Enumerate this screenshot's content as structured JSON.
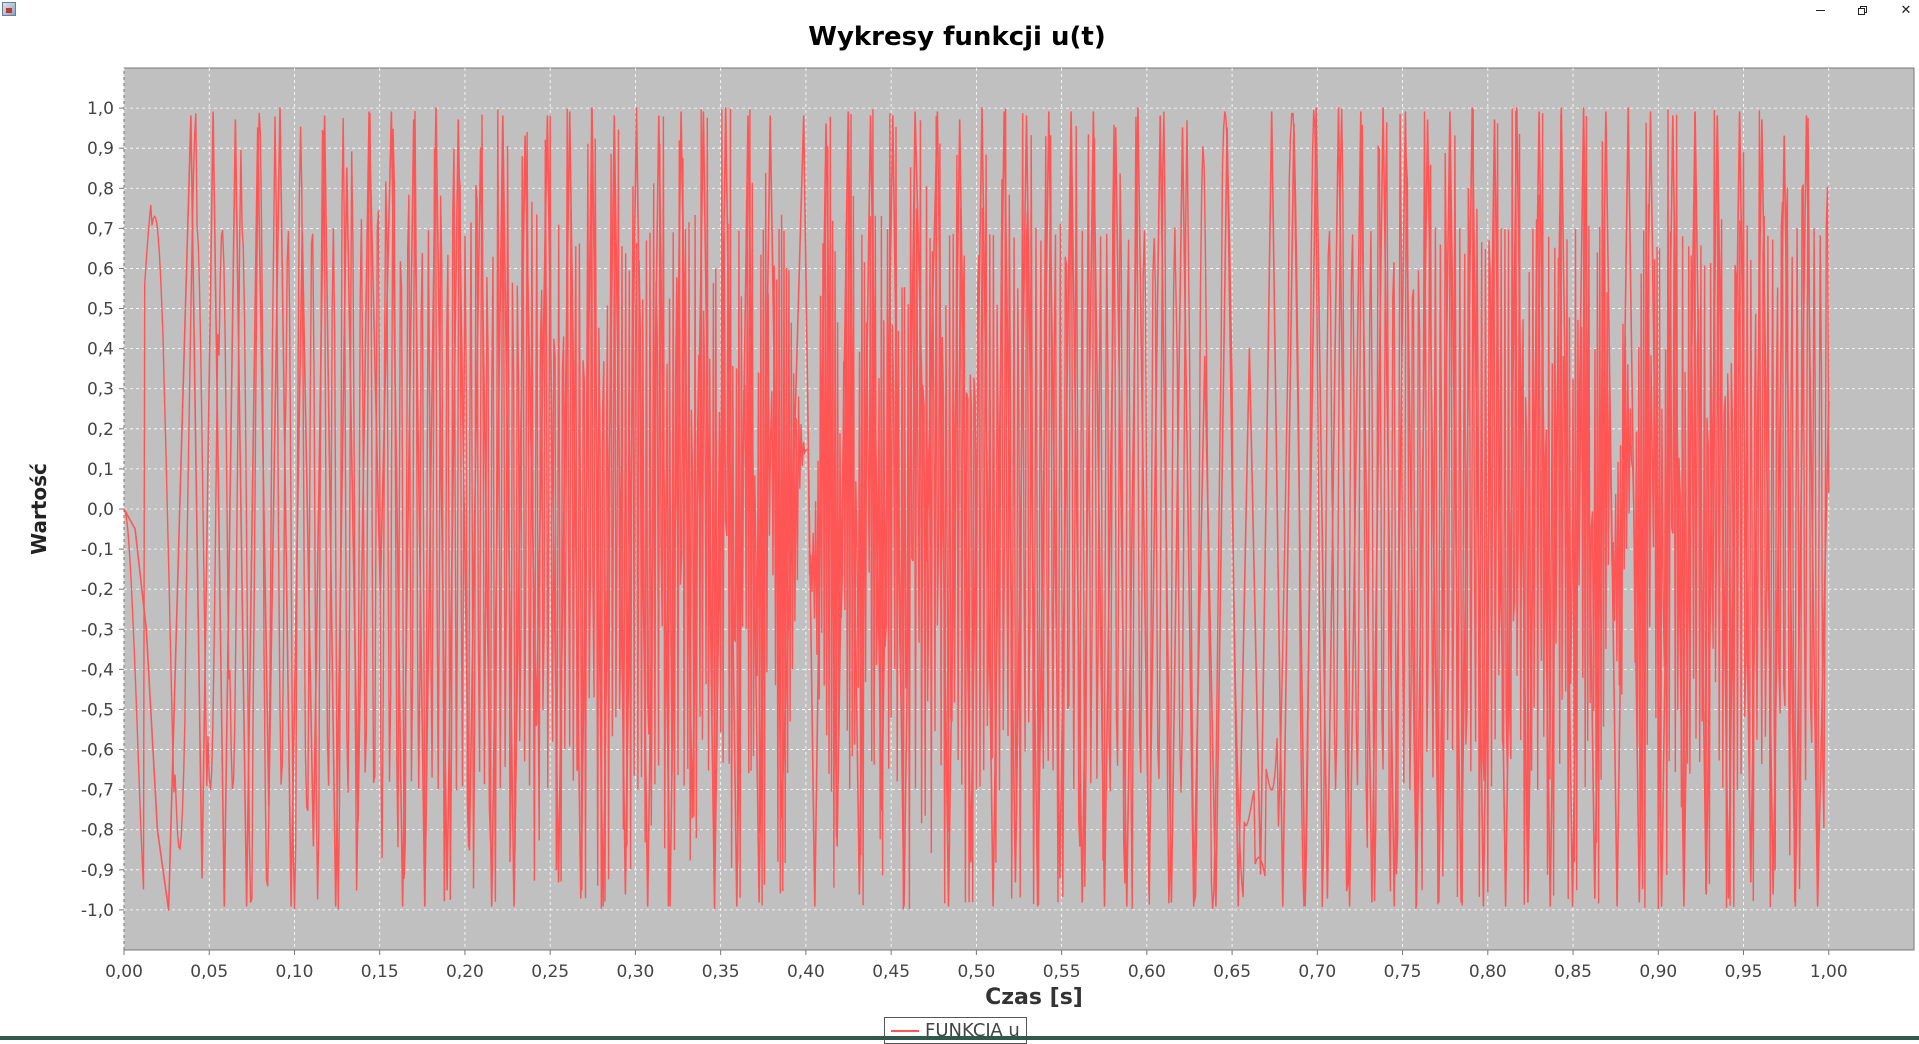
{
  "window": {
    "title": "",
    "minimize_label": "minimize",
    "restore_label": "restore",
    "close_label": "close"
  },
  "colors": {
    "plot_background": "#c0c0c0",
    "series_color": "#ff5555",
    "gridline_color": "#ffffff"
  },
  "chart_data": {
    "type": "line",
    "title": "Wykresy funkcji u(t)",
    "xlabel": "Czas [s]",
    "ylabel": "Wartość",
    "xlim": [
      0.0,
      1.05
    ],
    "ylim": [
      -1.1,
      1.1
    ],
    "grid": true,
    "legend_position": "bottom-center",
    "x_ticks": [
      "0,00",
      "0,05",
      "0,10",
      "0,15",
      "0,20",
      "0,25",
      "0,30",
      "0,35",
      "0,40",
      "0,45",
      "0,50",
      "0,55",
      "0,60",
      "0,65",
      "0,70",
      "0,75",
      "0,80",
      "0,85",
      "0,90",
      "0,95",
      "1,00"
    ],
    "y_ticks": [
      "1,0",
      "0,9",
      "0,8",
      "0,7",
      "0,6",
      "0,5",
      "0,4",
      "0,3",
      "0,2",
      "0,1",
      "0,0",
      "-0,1",
      "-0,2",
      "-0,3",
      "-0,4",
      "-0,5",
      "-0,6",
      "-0,7",
      "-0,8",
      "-0,9",
      "-1,0"
    ],
    "series": [
      {
        "name": "FUNKCJA u",
        "description_of_shape": "",
        "x_start": 0.0,
        "x_end": 1.0,
        "values_sampled": [
          0.0,
          -0.05,
          -0.3,
          -0.8,
          -1.0,
          0.0,
          0.98,
          -0.92,
          0.99,
          -0.99,
          0.97,
          -0.99,
          0.95,
          -0.74,
          1.0,
          -0.99,
          0.69,
          -0.84,
          0.98,
          -0.99,
          0.85,
          -0.78,
          0.99,
          -0.21,
          0.99,
          -0.99,
          0.97,
          -0.99,
          1.0,
          -0.95,
          0.97,
          -0.85,
          0.9,
          -0.99,
          0.98,
          -0.99,
          0.93,
          -0.54,
          0.98,
          -0.93,
          0.99,
          -0.97,
          1.0,
          -0.99,
          0.98,
          -0.96,
          1.0,
          -0.99,
          0.98,
          -0.99,
          0.99,
          -0.77,
          0.99,
          -0.99,
          1.0,
          -0.99,
          0.98,
          -0.98,
          0.98,
          -0.77,
          0.0,
          0.98,
          -0.99,
          0.96,
          -0.84,
          0.99,
          -0.96,
          0.98,
          -0.75,
          0.98,
          -0.99,
          0.99,
          -0.13,
          0.99,
          -0.99,
          0.97,
          -0.88,
          1.0,
          -0.99,
          0.99,
          -0.93,
          0.98,
          -0.99,
          0.99,
          -0.92,
          0.99,
          -0.98,
          0.99,
          -0.99,
          0.95,
          -0.99,
          1.0,
          -0.96,
          0.98,
          -0.98,
          0.95,
          -0.99,
          0.38,
          -0.99,
          0.95,
          -0.99,
          0.4,
          -0.91,
          0.99,
          -0.99,
          0.96,
          -0.99,
          1.0,
          -0.97,
          1.0,
          -0.99,
          0.99,
          -0.98,
          1.0,
          -0.99,
          0.99,
          -0.99,
          0.97,
          -0.98,
          0.99,
          -0.98,
          1.0,
          -0.99,
          0.97,
          -0.99,
          1.0,
          -0.98,
          0.99,
          -0.99,
          1.0,
          -0.99,
          1.0,
          -0.97,
          0.99,
          -0.99,
          1.0,
          -0.98,
          0.99,
          -0.99,
          0.98,
          -0.99,
          0.99,
          -0.96,
          0.98,
          -0.97,
          0.99,
          -0.93,
          0.97,
          -0.96,
          0.93,
          -0.99,
          0.98,
          -0.99,
          0.27
        ]
      }
    ]
  }
}
